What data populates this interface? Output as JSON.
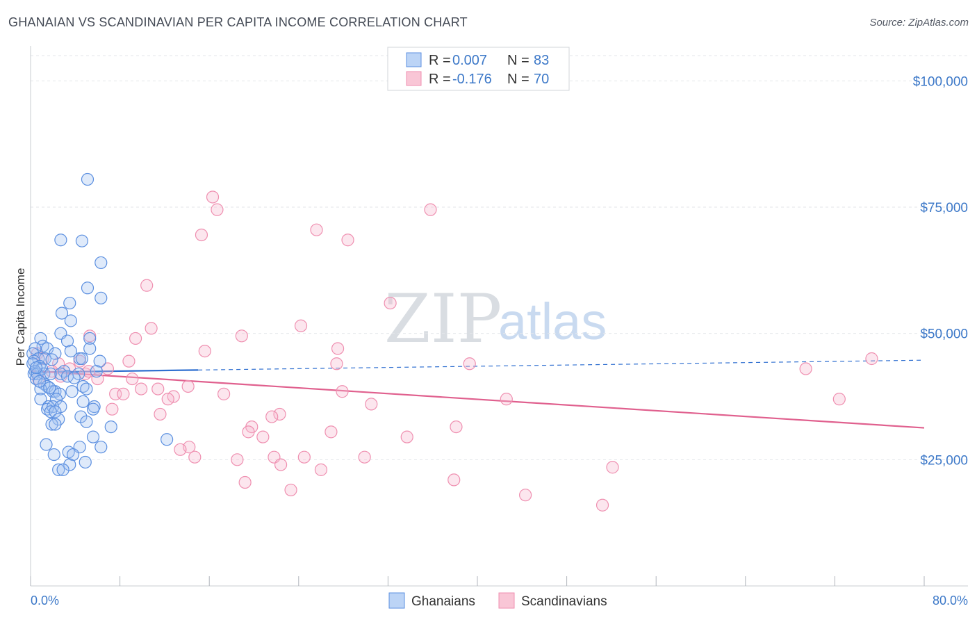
{
  "header": {
    "title": "GHANAIAN VS SCANDINAVIAN PER CAPITA INCOME CORRELATION CHART",
    "source": "Source: ZipAtlas.com"
  },
  "watermark": {
    "part1": "ZIP",
    "part2": "atlas"
  },
  "legend": {
    "row1": {
      "r_label": "R = ",
      "r_value": "0.007",
      "n_label": "N = ",
      "n_value": "83"
    },
    "row2": {
      "r_label": "R = ",
      "r_value": "-0.176",
      "n_label": "N = ",
      "n_value": "70"
    }
  },
  "bottom_legend": {
    "series1": "Ghanaians",
    "series2": "Scandinavians"
  },
  "chart_data": {
    "type": "scatter",
    "title": "GHANAIAN VS SCANDINAVIAN PER CAPITA INCOME CORRELATION CHART",
    "xlabel": "",
    "ylabel": "Per Capita Income",
    "xlim": [
      0,
      80
    ],
    "ylim": [
      0,
      105000
    ],
    "x_tick_labels": [
      "0.0%",
      "80.0%"
    ],
    "y_ticks": [
      25000,
      50000,
      75000,
      100000
    ],
    "y_tick_labels": [
      "$25,000",
      "$50,000",
      "$75,000",
      "$100,000"
    ],
    "colors": {
      "ghanaians": "#5b8fe0",
      "scandinavians": "#ef8fb0",
      "blue_line": "#2f6fd0",
      "pink_line": "#e0608e"
    },
    "series": [
      {
        "name": "Ghanaians",
        "r": 0.007,
        "n": 83,
        "trend": {
          "x0": 0,
          "y0": 42300,
          "x1": 80,
          "y1": 44700,
          "solid_until_x": 15
        },
        "points": [
          [
            5.1,
            80500
          ],
          [
            2.7,
            68500
          ],
          [
            4.6,
            68300
          ],
          [
            6.3,
            64000
          ],
          [
            5.1,
            59000
          ],
          [
            6.3,
            57000
          ],
          [
            3.5,
            56000
          ],
          [
            2.8,
            54000
          ],
          [
            3.6,
            52500
          ],
          [
            2.7,
            50000
          ],
          [
            0.9,
            49000
          ],
          [
            5.3,
            49000
          ],
          [
            3.3,
            48500
          ],
          [
            1.1,
            47500
          ],
          [
            1.5,
            47000
          ],
          [
            0.4,
            47000
          ],
          [
            5.3,
            47000
          ],
          [
            3.6,
            46500
          ],
          [
            2.2,
            46000
          ],
          [
            0.2,
            46000
          ],
          [
            0.7,
            45000
          ],
          [
            1.3,
            45000
          ],
          [
            0.3,
            44500
          ],
          [
            4.4,
            45000
          ],
          [
            4.6,
            45000
          ],
          [
            6.2,
            44500
          ],
          [
            0.2,
            44000
          ],
          [
            0.8,
            43500
          ],
          [
            1.0,
            43000
          ],
          [
            0.4,
            42500
          ],
          [
            3.0,
            42500
          ],
          [
            5.9,
            42500
          ],
          [
            0.3,
            42000
          ],
          [
            0.6,
            42000
          ],
          [
            1.2,
            42000
          ],
          [
            1.8,
            42000
          ],
          [
            2.7,
            42000
          ],
          [
            4.3,
            42000
          ],
          [
            3.3,
            41500
          ],
          [
            0.5,
            41000
          ],
          [
            1.2,
            40000
          ],
          [
            1.5,
            39500
          ],
          [
            4.7,
            39500
          ],
          [
            5.0,
            39000
          ],
          [
            0.9,
            39000
          ],
          [
            2.0,
            38500
          ],
          [
            2.2,
            38500
          ],
          [
            3.7,
            38500
          ],
          [
            2.6,
            38000
          ],
          [
            0.9,
            37000
          ],
          [
            2.3,
            37000
          ],
          [
            4.7,
            36500
          ],
          [
            1.6,
            35500
          ],
          [
            1.5,
            35000
          ],
          [
            2.0,
            35500
          ],
          [
            2.7,
            35500
          ],
          [
            5.7,
            35500
          ],
          [
            5.6,
            35000
          ],
          [
            1.8,
            34500
          ],
          [
            2.2,
            34500
          ],
          [
            4.5,
            33500
          ],
          [
            2.5,
            33000
          ],
          [
            5.0,
            32500
          ],
          [
            1.9,
            32000
          ],
          [
            2.2,
            32000
          ],
          [
            7.2,
            31500
          ],
          [
            5.6,
            29500
          ],
          [
            12.2,
            29000
          ],
          [
            1.4,
            28000
          ],
          [
            4.4,
            27500
          ],
          [
            6.3,
            27500
          ],
          [
            3.4,
            26500
          ],
          [
            3.8,
            26000
          ],
          [
            2.1,
            26000
          ],
          [
            4.9,
            24500
          ],
          [
            3.5,
            24000
          ],
          [
            2.5,
            23000
          ],
          [
            2.9,
            23000
          ],
          [
            0.5,
            43200
          ],
          [
            1.9,
            44800
          ],
          [
            3.9,
            41200
          ],
          [
            0.8,
            40500
          ],
          [
            1.7,
            39200
          ]
        ]
      },
      {
        "name": "Scandinavians",
        "r": -0.176,
        "n": 70,
        "trend": {
          "x0": 0,
          "y0": 42600,
          "x1": 80,
          "y1": 31300
        },
        "points": [
          [
            16.3,
            77000
          ],
          [
            16.7,
            74500
          ],
          [
            35.8,
            74500
          ],
          [
            15.3,
            69500
          ],
          [
            25.6,
            70500
          ],
          [
            28.4,
            68500
          ],
          [
            10.4,
            59500
          ],
          [
            32.2,
            56000
          ],
          [
            10.8,
            51000
          ],
          [
            24.2,
            51500
          ],
          [
            5.3,
            49500
          ],
          [
            18.9,
            49500
          ],
          [
            9.4,
            49000
          ],
          [
            27.5,
            47000
          ],
          [
            15.6,
            46500
          ],
          [
            0.6,
            46000
          ],
          [
            1.1,
            45000
          ],
          [
            4.4,
            44500
          ],
          [
            2.5,
            44000
          ],
          [
            8.8,
            44500
          ],
          [
            27.4,
            44000
          ],
          [
            39.3,
            44000
          ],
          [
            75.3,
            45000
          ],
          [
            3.5,
            43000
          ],
          [
            6.9,
            43000
          ],
          [
            1.9,
            42500
          ],
          [
            4.9,
            42000
          ],
          [
            5.2,
            42500
          ],
          [
            69.4,
            43000
          ],
          [
            0.7,
            41000
          ],
          [
            6.0,
            41000
          ],
          [
            9.1,
            41000
          ],
          [
            14.1,
            39500
          ],
          [
            9.9,
            39000
          ],
          [
            11.4,
            39000
          ],
          [
            17.3,
            38000
          ],
          [
            7.6,
            38000
          ],
          [
            8.3,
            38000
          ],
          [
            27.9,
            38500
          ],
          [
            12.8,
            37500
          ],
          [
            42.6,
            37000
          ],
          [
            12.3,
            37000
          ],
          [
            30.5,
            36000
          ],
          [
            7.3,
            35000
          ],
          [
            22.3,
            34000
          ],
          [
            11.6,
            34000
          ],
          [
            21.6,
            33500
          ],
          [
            38.1,
            31500
          ],
          [
            19.8,
            31500
          ],
          [
            26.9,
            30500
          ],
          [
            19.5,
            30500
          ],
          [
            20.8,
            29500
          ],
          [
            33.7,
            29500
          ],
          [
            14.2,
            27500
          ],
          [
            13.4,
            27000
          ],
          [
            14.7,
            25500
          ],
          [
            29.9,
            25500
          ],
          [
            21.8,
            25500
          ],
          [
            24.5,
            25500
          ],
          [
            18.5,
            25000
          ],
          [
            22.4,
            24000
          ],
          [
            52.1,
            23500
          ],
          [
            26.0,
            23000
          ],
          [
            37.9,
            21000
          ],
          [
            19.2,
            20500
          ],
          [
            23.3,
            19000
          ],
          [
            44.3,
            18000
          ],
          [
            51.2,
            16000
          ],
          [
            72.4,
            37000
          ],
          [
            2.7,
            41500
          ]
        ]
      }
    ]
  }
}
